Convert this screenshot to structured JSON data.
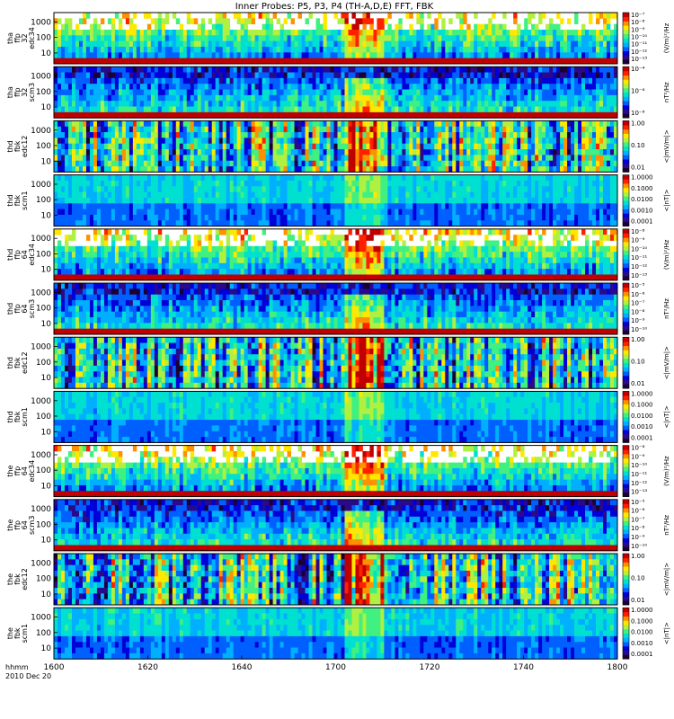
{
  "chart_data": {
    "type": "heatmap",
    "title": "Inner Probes: P5, P3, P4 (TH-A,D,E) FFT, FBK",
    "time_axis": {
      "label_line1": "hhmm",
      "label_line2": "2010 Dec 20",
      "range": [
        "16:00",
        "18:00"
      ],
      "ticks": [
        "1600",
        "1620",
        "1640",
        "1700",
        "1720",
        "1740",
        "1800"
      ]
    },
    "freq_ticks": [
      "10",
      "100",
      "1000"
    ],
    "panels": [
      {
        "probe": "tha",
        "lines": [
          "tha",
          "ffp",
          "32",
          "edc34"
        ],
        "kind": "fft_e",
        "colorbar_ticks": [
          "10⁻⁷",
          "10⁻⁸",
          "10⁻⁹",
          "10⁻¹⁰",
          "10⁻¹¹",
          "10⁻¹²",
          "10⁻¹³"
        ],
        "colorbar_label": "(V/m)²/Hz",
        "data_start_frac": 0.0
      },
      {
        "probe": "tha",
        "lines": [
          "tha",
          "ffp",
          "32",
          "scm3"
        ],
        "kind": "fft_b",
        "colorbar_ticks": [
          "10⁻⁴",
          "10⁻⁶",
          "10⁻⁸"
        ],
        "colorbar_label": "nT²/Hz",
        "data_start_frac": 0.0
      },
      {
        "probe": "thd",
        "lines": [
          "thd",
          "fbk",
          "edc12"
        ],
        "kind": "fbk_e",
        "colorbar_ticks": [
          "1.00",
          "0.10",
          "0.01"
        ],
        "colorbar_label": "<|mV/m|>",
        "data_start_frac": 0.0
      },
      {
        "probe": "thd",
        "lines": [
          "thd",
          "fbk",
          "scm1"
        ],
        "kind": "fbk_b",
        "colorbar_ticks": [
          "1.0000",
          "0.1000",
          "0.0100",
          "0.0010",
          "0.0001"
        ],
        "colorbar_label": "<|nT|>",
        "data_start_frac": 0.0
      },
      {
        "probe": "thd",
        "lines": [
          "thd",
          "ffp",
          "64",
          "edc34"
        ],
        "kind": "fft_e",
        "colorbar_ticks": [
          "10⁻⁸",
          "10⁻⁹",
          "10⁻¹⁰",
          "10⁻¹¹",
          "10⁻¹²",
          "10⁻¹³"
        ],
        "colorbar_label": "(V/m)²/Hz",
        "data_start_frac": 0.0
      },
      {
        "probe": "thd",
        "lines": [
          "thd",
          "ffp",
          "64",
          "scm3"
        ],
        "kind": "fft_b",
        "colorbar_ticks": [
          "10⁻⁵",
          "10⁻⁶",
          "10⁻⁷",
          "10⁻⁸",
          "10⁻⁹",
          "10⁻¹⁰"
        ],
        "colorbar_label": "nT²/Hz",
        "data_start_frac": 0.0
      },
      {
        "probe": "thd",
        "lines": [
          "thd",
          "fbk",
          "edc12"
        ],
        "kind": "fbk_e",
        "colorbar_ticks": [
          "1.00",
          "0.10",
          "0.01"
        ],
        "colorbar_label": "<|mV/m|>",
        "data_start_frac": 0.0
      },
      {
        "probe": "thd",
        "lines": [
          "thd",
          "fbk",
          "scm1"
        ],
        "kind": "fbk_b",
        "colorbar_ticks": [
          "1.0000",
          "0.1000",
          "0.0100",
          "0.0010",
          "0.0001"
        ],
        "colorbar_label": "<|nT|>",
        "data_start_frac": 0.0
      },
      {
        "probe": "the",
        "lines": [
          "the",
          "ffp",
          "64",
          "edc34"
        ],
        "kind": "fft_e",
        "colorbar_ticks": [
          "10⁻⁸",
          "10⁻⁹",
          "10⁻¹⁰",
          "10⁻¹¹",
          "10⁻¹²",
          "10⁻¹³"
        ],
        "colorbar_label": "(V/m)²/Hz",
        "data_start_frac": 0.0
      },
      {
        "probe": "the",
        "lines": [
          "the",
          "ffp",
          "64",
          "scm3"
        ],
        "kind": "fft_b",
        "colorbar_ticks": [
          "10⁻⁵",
          "10⁻⁶",
          "10⁻⁷",
          "10⁻⁸",
          "10⁻⁹",
          "10⁻¹⁰"
        ],
        "colorbar_label": "nT²/Hz",
        "data_start_frac": 0.0
      },
      {
        "probe": "the",
        "lines": [
          "the",
          "fbk",
          "edc12"
        ],
        "kind": "fbk_e",
        "colorbar_ticks": [
          "1.00",
          "0.10",
          "0.01"
        ],
        "colorbar_label": "<|mV/m|>",
        "data_start_frac": 0.0
      },
      {
        "probe": "the",
        "lines": [
          "the",
          "fbk",
          "scm1"
        ],
        "kind": "fbk_b",
        "colorbar_ticks": [
          "1.0000",
          "0.1000",
          "0.0100",
          "0.0010",
          "0.0001"
        ],
        "colorbar_label": "<|nT|>",
        "data_start_frac": 0.0
      }
    ],
    "colorscale": [
      "#1a0033",
      "#2a0a8a",
      "#0000d8",
      "#0060ff",
      "#00b0ff",
      "#00e0d0",
      "#40f080",
      "#b0f040",
      "#ffe800",
      "#ff9000",
      "#ff2000",
      "#c00000"
    ]
  }
}
